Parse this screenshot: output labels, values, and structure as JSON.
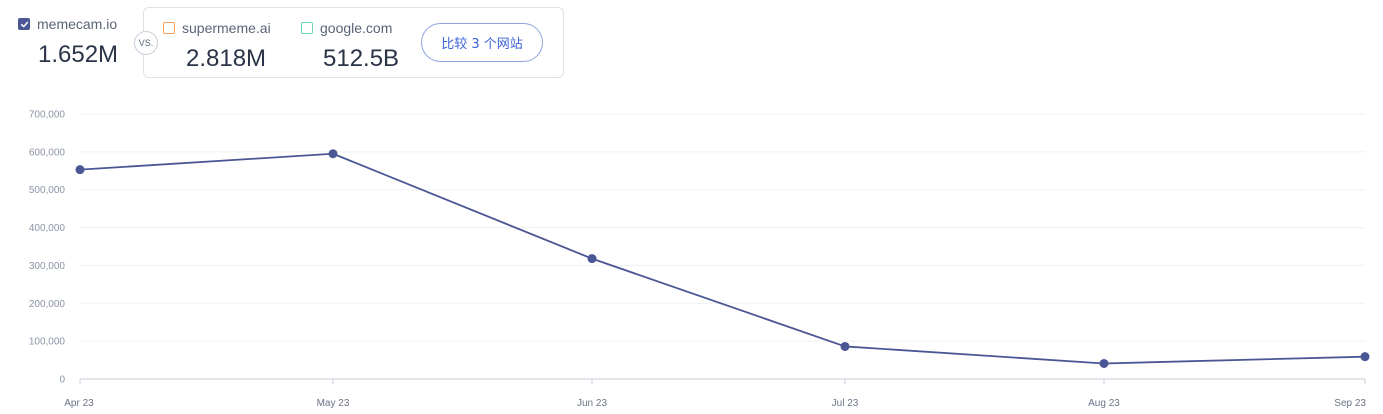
{
  "header": {
    "main_site": {
      "name": "memecam.io",
      "value": "1.652M",
      "checked": true
    },
    "vs_label": "VS.",
    "compare_sites": [
      {
        "name": "supermeme.ai",
        "value": "2.818M",
        "checked": false,
        "color": "#f3a15d"
      },
      {
        "name": "google.com",
        "value": "512.5B",
        "checked": false,
        "color": "#6fd4b2"
      }
    ],
    "compare_button_label": "比较 3 个网站"
  },
  "chart_data": {
    "type": "line",
    "categories": [
      "Apr 23",
      "May 23",
      "Jun 23",
      "Jul 23",
      "Aug 23",
      "Sep 23"
    ],
    "series": [
      {
        "values": [
          553000,
          595000,
          318000,
          86000,
          41000,
          59000
        ],
        "color": "#4b5794"
      }
    ],
    "ylim": [
      0,
      700000
    ],
    "yticks": [
      0,
      100000,
      200000,
      300000,
      400000,
      500000,
      600000,
      700000
    ],
    "ytick_labels": [
      "0",
      "100,000",
      "200,000",
      "300,000",
      "400,000",
      "500,000",
      "600,000",
      "700,000"
    ],
    "grid": true,
    "legend": "none"
  }
}
